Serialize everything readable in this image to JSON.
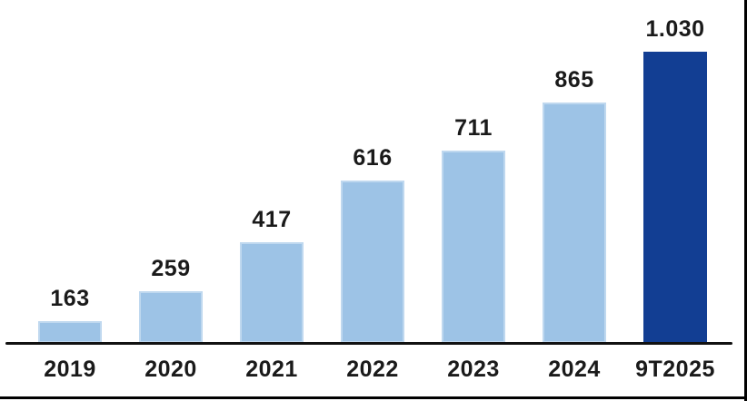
{
  "chart_data": {
    "type": "bar",
    "title": "",
    "xlabel": "",
    "ylabel": "",
    "categories": [
      "2019",
      "2020",
      "2021",
      "2022",
      "2023",
      "2024",
      "9T2025"
    ],
    "values": [
      163,
      259,
      417,
      616,
      711,
      865,
      1030
    ],
    "value_labels": [
      "163",
      "259",
      "417",
      "616",
      "711",
      "865",
      "1.030"
    ],
    "highlight_category": "9T2025",
    "highlight_index": 6,
    "ylim": [
      93,
      1085
    ],
    "grid": false,
    "legend": false,
    "y_axis_visible": false,
    "bar_color_default": "#9DC3E6",
    "bar_border_color_default": "#BFD8EF",
    "bar_color_highlight": "#123E93",
    "axis_line_color": "#111111",
    "label_color": "#1a1a1a",
    "frame_border_color": "#000000",
    "background_color": "#ffffff"
  }
}
